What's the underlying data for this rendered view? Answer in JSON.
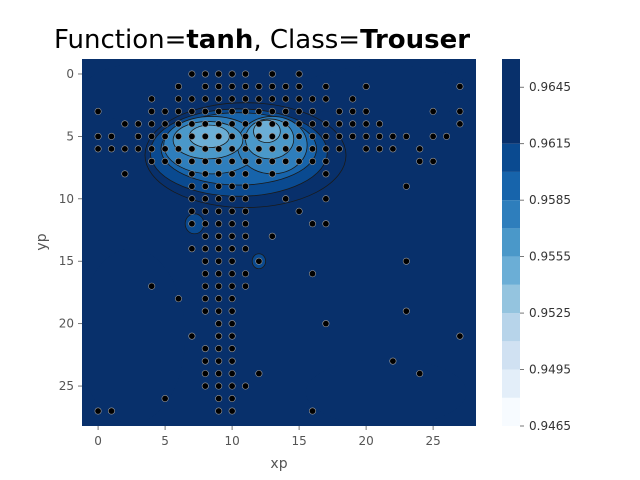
{
  "title": {
    "prefix": "Function=",
    "function": "tanh",
    "middle": ", Class=",
    "class": "Trouser"
  },
  "chart_data": {
    "type": "heatmap",
    "subtype": "filled-contour with scatter overlay",
    "xlabel": "xp",
    "ylabel": "yp",
    "xlim": [
      -1.2,
      28.2
    ],
    "ylim": [
      28.2,
      -1.2
    ],
    "y_inverted": true,
    "x_ticks": [
      0,
      5,
      10,
      15,
      20,
      25
    ],
    "y_ticks": [
      0,
      5,
      10,
      15,
      20,
      25
    ],
    "grid": false,
    "colormap": "Blues",
    "colorbar_levels": [
      0.9465,
      0.948,
      0.9495,
      0.951,
      0.9525,
      0.954,
      0.9555,
      0.957,
      0.9585,
      0.96,
      0.9615,
      0.963,
      0.9645,
      0.966
    ],
    "colorbar_tick_labels": [
      "0.9465",
      "0.9495",
      "0.9525",
      "0.9555",
      "0.9585",
      "0.9615",
      "0.9645"
    ],
    "colorbar_colors": [
      "#f7fbff",
      "#e3eef9",
      "#d0e1f2",
      "#b7d4ea",
      "#94c4df",
      "#6baed6",
      "#4a98c9",
      "#2e7ebc",
      "#1764ab",
      "#0a4a90",
      "#08306b"
    ],
    "background_level_value": 0.963,
    "regions": [
      {
        "shape": "ellipse",
        "cx": 11,
        "cy": 6.5,
        "rx": 7.5,
        "ry": 4.2,
        "value": 0.9615
      },
      {
        "shape": "ellipse",
        "cx": 10.5,
        "cy": 6.3,
        "rx": 6.6,
        "ry": 3.5,
        "value": 0.96
      },
      {
        "shape": "ellipse",
        "cx": 10.5,
        "cy": 6.0,
        "rx": 5.8,
        "ry": 2.9,
        "value": 0.9585
      },
      {
        "shape": "ellipse",
        "cx": 8.5,
        "cy": 5.7,
        "rx": 3.6,
        "ry": 2.3,
        "value": 0.957
      },
      {
        "shape": "ellipse",
        "cx": 13.0,
        "cy": 5.7,
        "rx": 2.6,
        "ry": 2.3,
        "value": 0.957
      },
      {
        "shape": "ellipse",
        "cx": 8.2,
        "cy": 5.3,
        "rx": 2.6,
        "ry": 1.5,
        "value": 0.9555
      },
      {
        "shape": "ellipse",
        "cx": 12.8,
        "cy": 5.2,
        "rx": 1.8,
        "ry": 1.6,
        "value": 0.9555
      },
      {
        "shape": "ellipse",
        "cx": 8.3,
        "cy": 5.0,
        "rx": 1.5,
        "ry": 0.9,
        "value": 0.954
      },
      {
        "shape": "ellipse",
        "cx": 12.6,
        "cy": 4.6,
        "rx": 1.0,
        "ry": 0.9,
        "value": 0.954
      },
      {
        "shape": "ellipse",
        "cx": 7.2,
        "cy": 12.0,
        "rx": 0.7,
        "ry": 0.8,
        "value": 0.96
      },
      {
        "shape": "ellipse",
        "cx": 12.0,
        "cy": 15.0,
        "rx": 0.5,
        "ry": 0.6,
        "value": 0.96
      }
    ],
    "dark_regions": [
      {
        "cx": 21.5,
        "cy": 1.5,
        "rx": 6.5,
        "ry": 2.2,
        "value": 0.9645
      },
      {
        "cx": 3.0,
        "cy": 1.5,
        "rx": 4.2,
        "ry": 2.3,
        "value": 0.9645
      },
      {
        "cx": 2.5,
        "cy": 21.0,
        "rx": 4.0,
        "ry": 7.0,
        "value": 0.9645
      },
      {
        "cx": 21.5,
        "cy": 25.5,
        "rx": 6.0,
        "ry": 2.7,
        "value": 0.9645
      }
    ],
    "points": [
      [
        7,
        0
      ],
      [
        8,
        0
      ],
      [
        9,
        0
      ],
      [
        10,
        0
      ],
      [
        11,
        0
      ],
      [
        13,
        0
      ],
      [
        15,
        0
      ],
      [
        6,
        1
      ],
      [
        8,
        1
      ],
      [
        9,
        1
      ],
      [
        10,
        1
      ],
      [
        11,
        1
      ],
      [
        12,
        1
      ],
      [
        13,
        1
      ],
      [
        14,
        1
      ],
      [
        15,
        1
      ],
      [
        17,
        1
      ],
      [
        20,
        1
      ],
      [
        27,
        1
      ],
      [
        4,
        2
      ],
      [
        6,
        2
      ],
      [
        7,
        2
      ],
      [
        8,
        2
      ],
      [
        9,
        2
      ],
      [
        10,
        2
      ],
      [
        11,
        2
      ],
      [
        12,
        2
      ],
      [
        13,
        2
      ],
      [
        14,
        2
      ],
      [
        15,
        2
      ],
      [
        16,
        2
      ],
      [
        17,
        2
      ],
      [
        19,
        2
      ],
      [
        0,
        3
      ],
      [
        4,
        3
      ],
      [
        5,
        3
      ],
      [
        6,
        3
      ],
      [
        7,
        3
      ],
      [
        8,
        3
      ],
      [
        9,
        3
      ],
      [
        10,
        3
      ],
      [
        11,
        3
      ],
      [
        12,
        3
      ],
      [
        13,
        3
      ],
      [
        14,
        3
      ],
      [
        15,
        3
      ],
      [
        16,
        3
      ],
      [
        18,
        3
      ],
      [
        19,
        3
      ],
      [
        20,
        3
      ],
      [
        25,
        3
      ],
      [
        27,
        3
      ],
      [
        2,
        4
      ],
      [
        3,
        4
      ],
      [
        4,
        4
      ],
      [
        5,
        4
      ],
      [
        6,
        4
      ],
      [
        7,
        4
      ],
      [
        8,
        4
      ],
      [
        9,
        4
      ],
      [
        10,
        4
      ],
      [
        11,
        4
      ],
      [
        12,
        4
      ],
      [
        13,
        4
      ],
      [
        14,
        4
      ],
      [
        15,
        4
      ],
      [
        16,
        4
      ],
      [
        17,
        4
      ],
      [
        18,
        4
      ],
      [
        19,
        4
      ],
      [
        20,
        4
      ],
      [
        21,
        4
      ],
      [
        27,
        4
      ],
      [
        0,
        5
      ],
      [
        1,
        5
      ],
      [
        3,
        5
      ],
      [
        4,
        5
      ],
      [
        5,
        5
      ],
      [
        6,
        5
      ],
      [
        7,
        5
      ],
      [
        8,
        5
      ],
      [
        9,
        5
      ],
      [
        10,
        5
      ],
      [
        11,
        5
      ],
      [
        12,
        5
      ],
      [
        13,
        5
      ],
      [
        14,
        5
      ],
      [
        15,
        5
      ],
      [
        16,
        5
      ],
      [
        17,
        5
      ],
      [
        18,
        5
      ],
      [
        19,
        5
      ],
      [
        20,
        5
      ],
      [
        21,
        5
      ],
      [
        22,
        5
      ],
      [
        23,
        5
      ],
      [
        25,
        5
      ],
      [
        26,
        5
      ],
      [
        0,
        6
      ],
      [
        1,
        6
      ],
      [
        2,
        6
      ],
      [
        3,
        6
      ],
      [
        4,
        6
      ],
      [
        5,
        6
      ],
      [
        6,
        6
      ],
      [
        7,
        6
      ],
      [
        8,
        6
      ],
      [
        9,
        6
      ],
      [
        10,
        6
      ],
      [
        11,
        6
      ],
      [
        12,
        6
      ],
      [
        13,
        6
      ],
      [
        14,
        6
      ],
      [
        15,
        6
      ],
      [
        16,
        6
      ],
      [
        17,
        6
      ],
      [
        18,
        6
      ],
      [
        20,
        6
      ],
      [
        21,
        6
      ],
      [
        22,
        6
      ],
      [
        24,
        6
      ],
      [
        4,
        7
      ],
      [
        5,
        7
      ],
      [
        6,
        7
      ],
      [
        7,
        7
      ],
      [
        8,
        7
      ],
      [
        9,
        7
      ],
      [
        10,
        7
      ],
      [
        11,
        7
      ],
      [
        12,
        7
      ],
      [
        13,
        7
      ],
      [
        14,
        7
      ],
      [
        15,
        7
      ],
      [
        16,
        7
      ],
      [
        17,
        7
      ],
      [
        24,
        7
      ],
      [
        25,
        7
      ],
      [
        2,
        8
      ],
      [
        7,
        8
      ],
      [
        8,
        8
      ],
      [
        9,
        8
      ],
      [
        10,
        8
      ],
      [
        11,
        8
      ],
      [
        13,
        8
      ],
      [
        17,
        8
      ],
      [
        7,
        9
      ],
      [
        8,
        9
      ],
      [
        9,
        9
      ],
      [
        10,
        9
      ],
      [
        11,
        9
      ],
      [
        23,
        9
      ],
      [
        7,
        10
      ],
      [
        8,
        10
      ],
      [
        9,
        10
      ],
      [
        10,
        10
      ],
      [
        11,
        10
      ],
      [
        14,
        10
      ],
      [
        17,
        10
      ],
      [
        7,
        11
      ],
      [
        8,
        11
      ],
      [
        9,
        11
      ],
      [
        10,
        11
      ],
      [
        11,
        11
      ],
      [
        15,
        11
      ],
      [
        7,
        12
      ],
      [
        8,
        12
      ],
      [
        9,
        12
      ],
      [
        10,
        12
      ],
      [
        11,
        12
      ],
      [
        16,
        12
      ],
      [
        17,
        12
      ],
      [
        8,
        13
      ],
      [
        9,
        13
      ],
      [
        10,
        13
      ],
      [
        11,
        13
      ],
      [
        13,
        13
      ],
      [
        7,
        14
      ],
      [
        8,
        14
      ],
      [
        9,
        14
      ],
      [
        10,
        14
      ],
      [
        11,
        14
      ],
      [
        8,
        15
      ],
      [
        9,
        15
      ],
      [
        10,
        15
      ],
      [
        12,
        15
      ],
      [
        23,
        15
      ],
      [
        8,
        16
      ],
      [
        9,
        16
      ],
      [
        10,
        16
      ],
      [
        11,
        16
      ],
      [
        16,
        16
      ],
      [
        8,
        17
      ],
      [
        9,
        17
      ],
      [
        10,
        17
      ],
      [
        11,
        17
      ],
      [
        4,
        17
      ],
      [
        6,
        18
      ],
      [
        8,
        18
      ],
      [
        9,
        18
      ],
      [
        10,
        18
      ],
      [
        8,
        19
      ],
      [
        9,
        19
      ],
      [
        10,
        19
      ],
      [
        23,
        19
      ],
      [
        9,
        20
      ],
      [
        10,
        20
      ],
      [
        17,
        20
      ],
      [
        7,
        21
      ],
      [
        9,
        21
      ],
      [
        10,
        21
      ],
      [
        27,
        21
      ],
      [
        8,
        22
      ],
      [
        9,
        22
      ],
      [
        10,
        22
      ],
      [
        8,
        23
      ],
      [
        9,
        23
      ],
      [
        10,
        23
      ],
      [
        22,
        23
      ],
      [
        8,
        24
      ],
      [
        9,
        24
      ],
      [
        10,
        24
      ],
      [
        12,
        24
      ],
      [
        24,
        24
      ],
      [
        8,
        25
      ],
      [
        9,
        25
      ],
      [
        10,
        25
      ],
      [
        11,
        25
      ],
      [
        5,
        26
      ],
      [
        9,
        26
      ],
      [
        10,
        26
      ],
      [
        0,
        27
      ],
      [
        1,
        27
      ],
      [
        9,
        27
      ],
      [
        10,
        27
      ],
      [
        16,
        27
      ]
    ]
  }
}
